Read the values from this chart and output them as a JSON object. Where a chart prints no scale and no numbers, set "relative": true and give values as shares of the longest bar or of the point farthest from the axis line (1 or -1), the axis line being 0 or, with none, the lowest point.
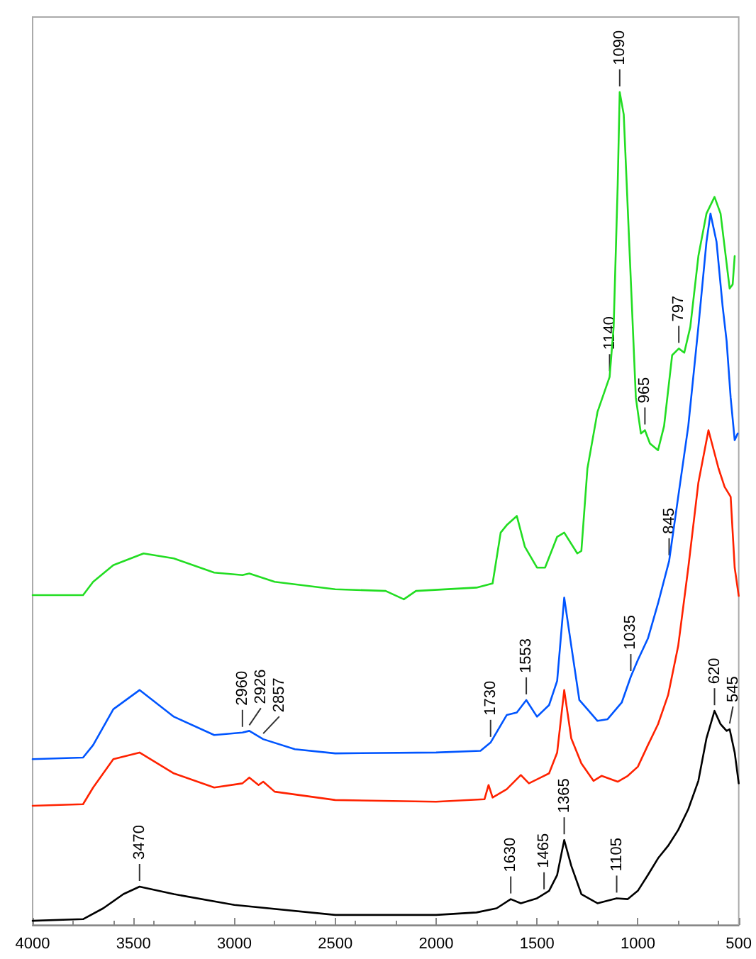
{
  "chart_data": {
    "type": "line",
    "relative": true,
    "xlim": [
      4000,
      500
    ],
    "xticks": [
      4000,
      3500,
      3000,
      2500,
      2000,
      1500,
      1000,
      500
    ],
    "tick_labels": "x",
    "marker": "none",
    "line_style": "solid",
    "series": [
      {
        "color": "#000000",
        "x": [
          4000,
          3750,
          3650,
          3550,
          3470,
          3300,
          3000,
          2500,
          2000,
          1800,
          1700,
          1630,
          1580,
          1500,
          1440,
          1400,
          1365,
          1330,
          1280,
          1200,
          1105,
          1050,
          1000,
          950,
          900,
          850,
          800,
          750,
          700,
          660,
          620,
          590,
          560,
          545,
          520,
          500
        ],
        "values": [
          0.005,
          0.007,
          0.02,
          0.037,
          0.046,
          0.037,
          0.024,
          0.012,
          0.012,
          0.015,
          0.02,
          0.031,
          0.026,
          0.032,
          0.041,
          0.06,
          0.102,
          0.071,
          0.037,
          0.026,
          0.032,
          0.031,
          0.041,
          0.06,
          0.08,
          0.095,
          0.114,
          0.139,
          0.173,
          0.224,
          0.257,
          0.241,
          0.233,
          0.235,
          0.207,
          0.17
        ]
      },
      {
        "color": "#ff2200",
        "x": [
          4000,
          3750,
          3700,
          3600,
          3470,
          3300,
          3100,
          2960,
          2926,
          2880,
          2857,
          2800,
          2500,
          2000,
          1760,
          1740,
          1720,
          1650,
          1580,
          1540,
          1440,
          1400,
          1365,
          1330,
          1280,
          1220,
          1180,
          1100,
          1050,
          1000,
          950,
          900,
          850,
          800,
          750,
          700,
          650,
          600,
          570,
          540,
          520,
          500
        ],
        "values": [
          0.143,
          0.145,
          0.165,
          0.199,
          0.207,
          0.182,
          0.165,
          0.17,
          0.177,
          0.168,
          0.172,
          0.16,
          0.15,
          0.148,
          0.151,
          0.168,
          0.153,
          0.163,
          0.18,
          0.17,
          0.182,
          0.207,
          0.282,
          0.224,
          0.194,
          0.173,
          0.179,
          0.172,
          0.179,
          0.19,
          0.216,
          0.241,
          0.276,
          0.335,
          0.429,
          0.531,
          0.594,
          0.548,
          0.526,
          0.514,
          0.429,
          0.395
        ]
      },
      {
        "color": "#0055ff",
        "x": [
          4000,
          3750,
          3700,
          3600,
          3470,
          3300,
          3100,
          2960,
          2926,
          2857,
          2700,
          2500,
          2000,
          1780,
          1730,
          1650,
          1600,
          1553,
          1500,
          1440,
          1400,
          1365,
          1330,
          1290,
          1250,
          1200,
          1150,
          1080,
          1035,
          1000,
          950,
          900,
          845,
          800,
          750,
          700,
          660,
          640,
          610,
          580,
          560,
          540,
          520,
          505
        ],
        "values": [
          0.199,
          0.201,
          0.216,
          0.259,
          0.282,
          0.25,
          0.228,
          0.231,
          0.233,
          0.223,
          0.211,
          0.206,
          0.207,
          0.209,
          0.219,
          0.252,
          0.255,
          0.27,
          0.25,
          0.264,
          0.293,
          0.393,
          0.335,
          0.27,
          0.259,
          0.245,
          0.247,
          0.267,
          0.298,
          0.318,
          0.344,
          0.386,
          0.437,
          0.514,
          0.599,
          0.718,
          0.82,
          0.854,
          0.82,
          0.743,
          0.701,
          0.633,
          0.582,
          0.59
        ]
      },
      {
        "color": "#22dd22",
        "x": [
          4000,
          3750,
          3700,
          3600,
          3450,
          3300,
          3100,
          2960,
          2926,
          2800,
          2500,
          2250,
          2160,
          2100,
          1800,
          1720,
          1680,
          1650,
          1600,
          1560,
          1500,
          1460,
          1400,
          1365,
          1300,
          1280,
          1250,
          1200,
          1140,
          1120,
          1100,
          1090,
          1070,
          1040,
          1010,
          985,
          965,
          940,
          900,
          870,
          830,
          797,
          770,
          740,
          700,
          660,
          620,
          590,
          560,
          545,
          530,
          520
        ],
        "values": [
          0.396,
          0.396,
          0.412,
          0.432,
          0.446,
          0.44,
          0.423,
          0.42,
          0.422,
          0.412,
          0.403,
          0.401,
          0.391,
          0.401,
          0.405,
          0.41,
          0.471,
          0.48,
          0.491,
          0.454,
          0.429,
          0.429,
          0.466,
          0.471,
          0.446,
          0.449,
          0.548,
          0.616,
          0.658,
          0.718,
          0.888,
          1,
          0.973,
          0.803,
          0.633,
          0.59,
          0.594,
          0.578,
          0.57,
          0.599,
          0.684,
          0.692,
          0.687,
          0.718,
          0.803,
          0.854,
          0.874,
          0.854,
          0.794,
          0.764,
          0.769,
          0.803
        ]
      }
    ],
    "annotations": [
      {
        "text": "3470",
        "x": 3470,
        "y": 0.046
      },
      {
        "text": "1630",
        "x": 1630,
        "y": 0.031
      },
      {
        "text": "1465",
        "x": 1465,
        "y": 0.036
      },
      {
        "text": "1365",
        "x": 1365,
        "y": 0.102
      },
      {
        "text": "1105",
        "x": 1105,
        "y": 0.032
      },
      {
        "text": "620",
        "x": 620,
        "y": 0.257
      },
      {
        "text": "545",
        "x": 545,
        "y": 0.235
      },
      {
        "text": "2960",
        "x": 2960,
        "y": 0.231
      },
      {
        "text": "2926",
        "x": 2926,
        "y": 0.233
      },
      {
        "text": "2857",
        "x": 2857,
        "y": 0.223
      },
      {
        "text": "1730",
        "x": 1730,
        "y": 0.219
      },
      {
        "text": "1553",
        "x": 1553,
        "y": 0.27
      },
      {
        "text": "1035",
        "x": 1035,
        "y": 0.298
      },
      {
        "text": "845",
        "x": 845,
        "y": 0.437
      },
      {
        "text": "1140",
        "x": 1140,
        "y": 0.658
      },
      {
        "text": "1090",
        "x": 1090,
        "y": 1
      },
      {
        "text": "965",
        "x": 965,
        "y": 0.594
      },
      {
        "text": "797",
        "x": 797,
        "y": 0.692
      }
    ]
  }
}
